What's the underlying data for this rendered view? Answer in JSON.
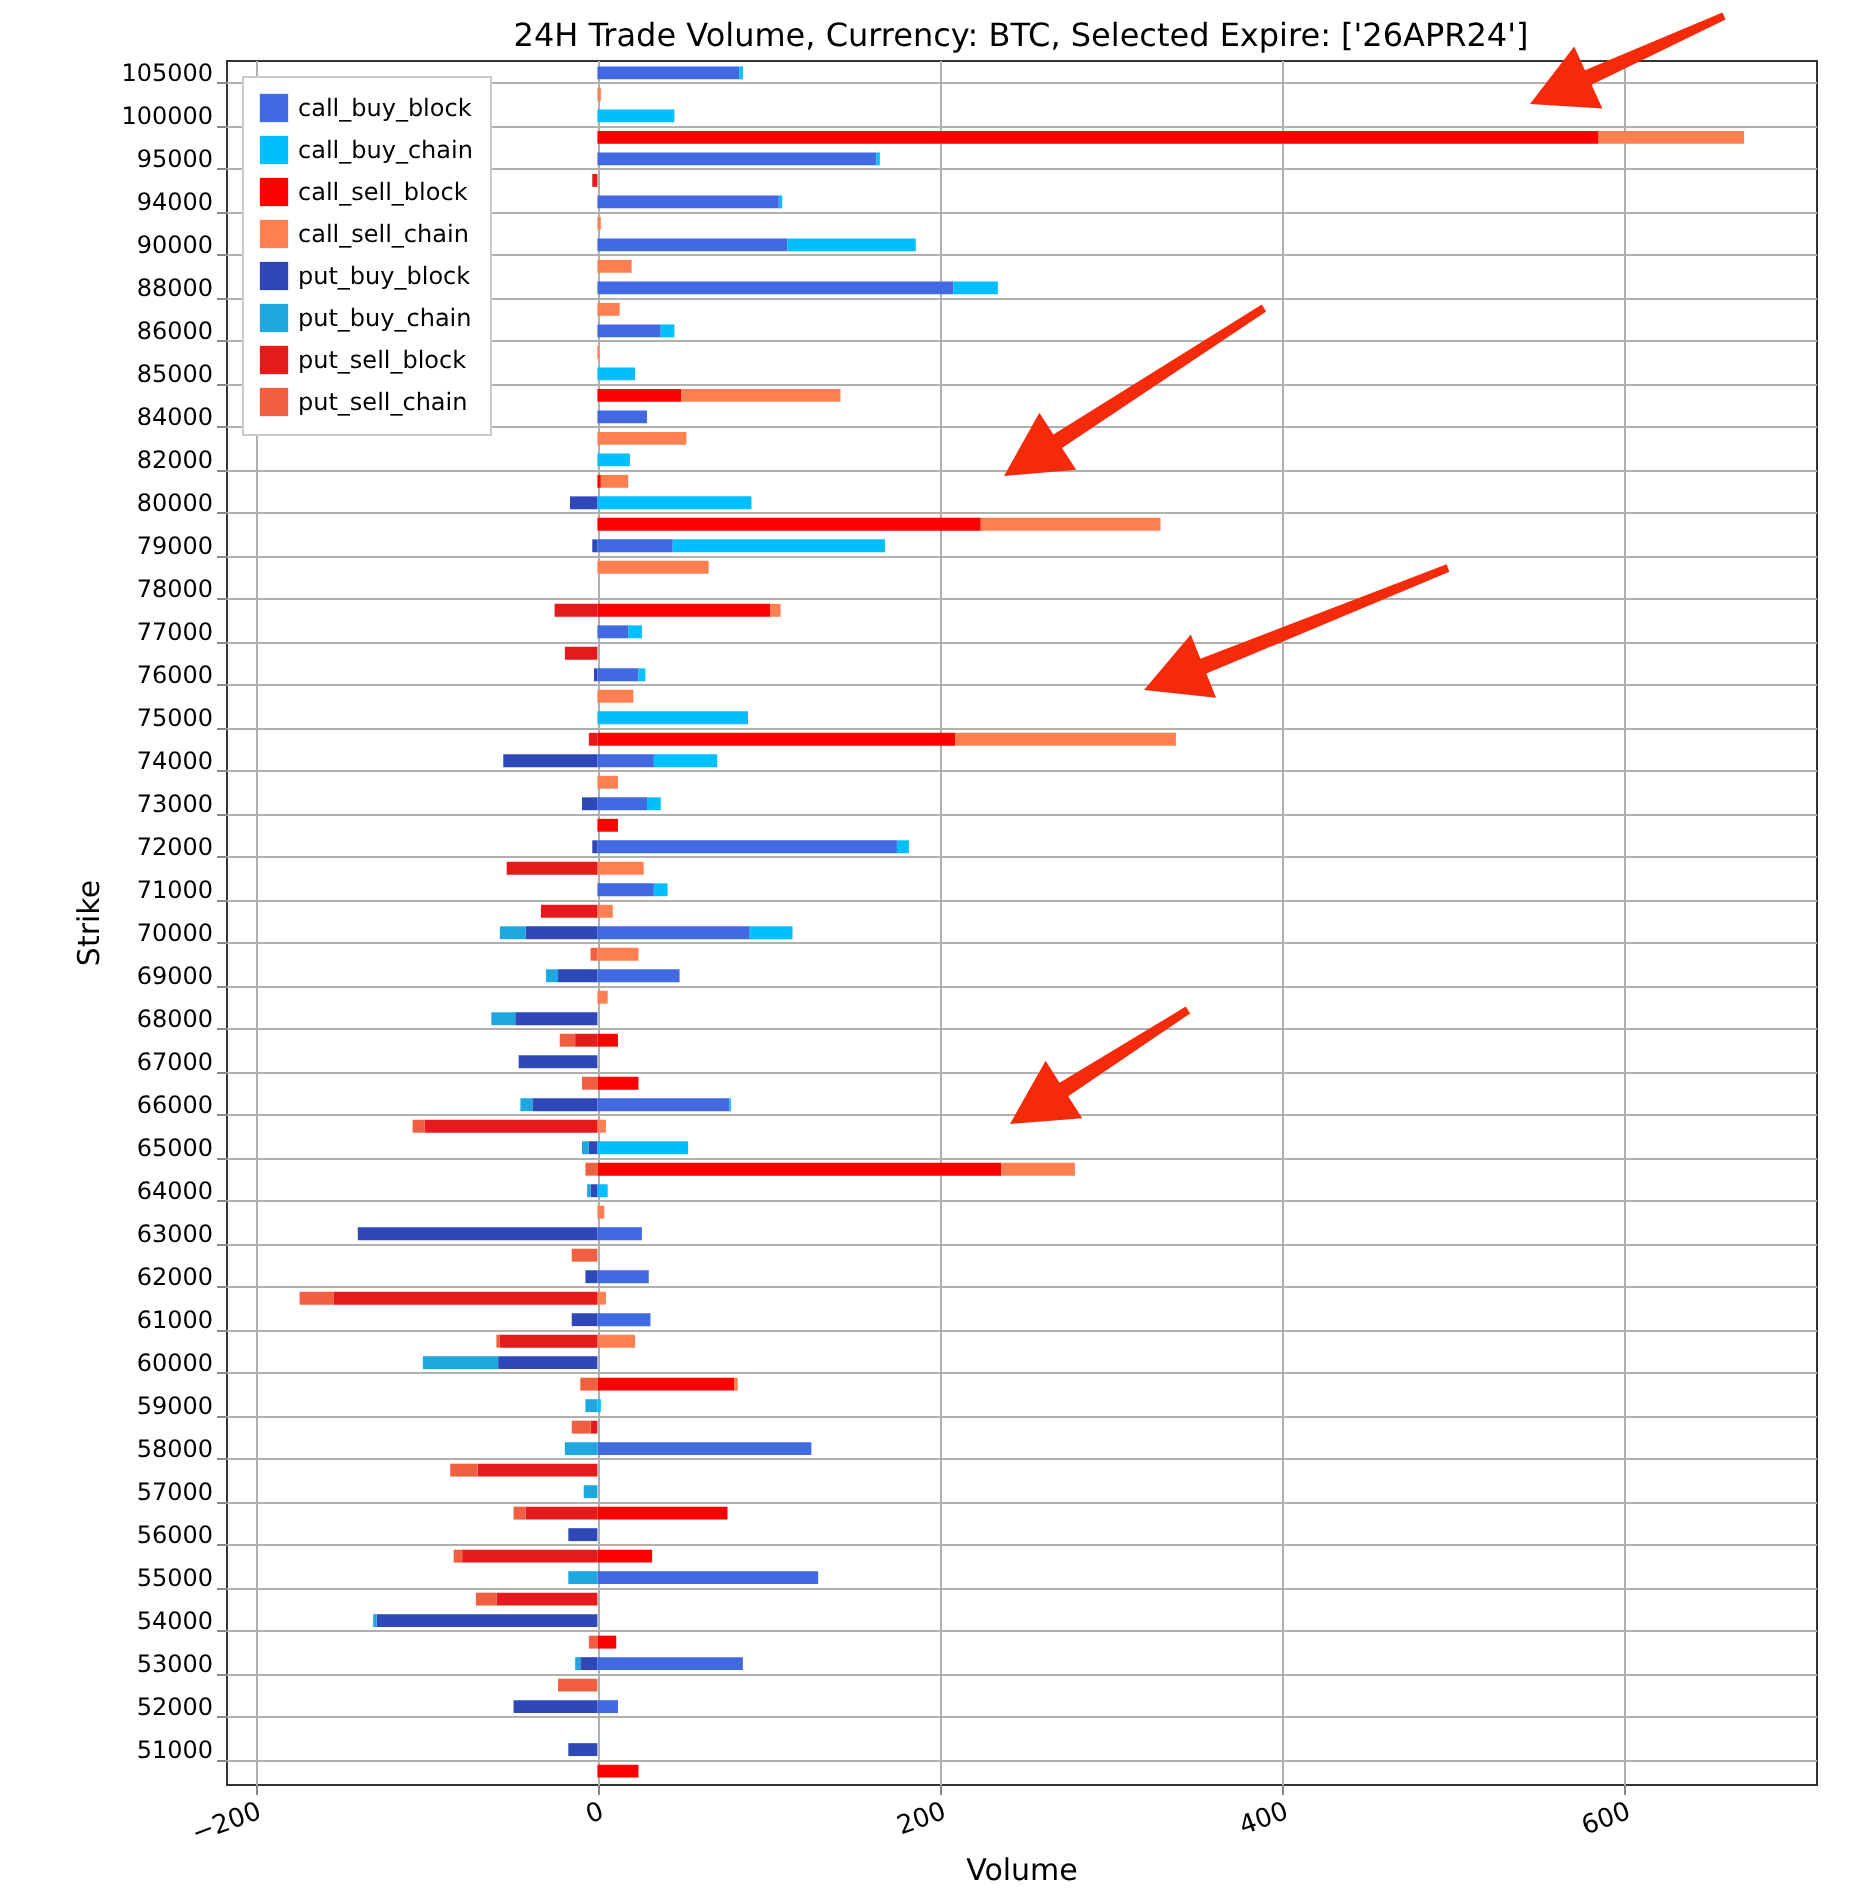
{
  "chart_data": {
    "type": "bar",
    "orientation": "horizontal",
    "stacked": true,
    "title": "24H Trade Volume, Currency: BTC, Selected Expire: ['26APR24']",
    "xlabel": "Volume",
    "ylabel": "Strike",
    "categories": [
      "105000",
      null,
      "100000",
      null,
      "95000",
      null,
      "94000",
      null,
      "90000",
      null,
      "88000",
      null,
      "86000",
      null,
      "85000",
      null,
      "84000",
      null,
      "82000",
      null,
      "80000",
      null,
      "79000",
      null,
      "78000",
      null,
      "77000",
      null,
      "76000",
      null,
      "75000",
      null,
      "74000",
      null,
      "73000",
      null,
      "72000",
      null,
      "71000",
      null,
      "70000",
      null,
      "69000",
      null,
      "68000",
      null,
      "67000",
      null,
      "66000",
      null,
      "65000",
      null,
      "64000",
      null,
      "63000",
      null,
      "62000",
      null,
      "61000",
      null,
      "60000",
      null,
      "59000",
      null,
      "58000",
      null,
      "57000",
      null,
      "56000",
      null,
      "55000",
      null,
      "54000",
      null,
      "53000",
      null,
      "52000",
      null,
      "51000",
      null
    ],
    "xlim": [
      -217,
      712
    ],
    "xticks": [
      -200,
      0,
      200,
      400,
      600
    ],
    "grid": true,
    "legend": "top left",
    "series": [
      {
        "name": "call_buy_block",
        "color": "#4169e1",
        "values": [
          83,
          null,
          null,
          null,
          163,
          null,
          106,
          null,
          111,
          null,
          208,
          null,
          37,
          null,
          null,
          null,
          29,
          null,
          null,
          null,
          null,
          null,
          44,
          null,
          null,
          null,
          18,
          null,
          24,
          null,
          null,
          null,
          33,
          null,
          29,
          null,
          175,
          null,
          33,
          null,
          89,
          null,
          48,
          null,
          null,
          null,
          null,
          null,
          77,
          null,
          null,
          null,
          null,
          null,
          26,
          null,
          30,
          null,
          31,
          null,
          null,
          null,
          null,
          null,
          125,
          null,
          null,
          null,
          null,
          null,
          129,
          null,
          null,
          null,
          85,
          null,
          12,
          null,
          null,
          null
        ]
      },
      {
        "name": "call_buy_chain",
        "color": "#00bfff",
        "values": [
          2,
          null,
          45,
          null,
          2,
          null,
          2,
          null,
          75,
          null,
          26,
          null,
          8,
          null,
          22,
          null,
          null,
          null,
          19,
          null,
          90,
          null,
          124,
          null,
          null,
          null,
          8,
          null,
          4,
          null,
          88,
          null,
          37,
          null,
          8,
          null,
          7,
          null,
          8,
          null,
          25,
          null,
          null,
          null,
          null,
          null,
          null,
          null,
          1,
          null,
          53,
          null,
          6,
          null,
          null,
          null,
          null,
          null,
          null,
          null,
          null,
          null,
          2,
          null,
          null,
          null,
          null,
          null,
          null,
          null,
          null,
          null,
          null,
          null,
          null,
          null,
          null,
          null,
          null,
          null
        ]
      },
      {
        "name": "call_sell_block",
        "color": "#ff0000",
        "values": [
          null,
          null,
          null,
          585,
          null,
          null,
          null,
          null,
          null,
          null,
          null,
          null,
          null,
          null,
          null,
          49,
          null,
          null,
          null,
          2,
          null,
          224,
          null,
          null,
          null,
          101,
          null,
          null,
          null,
          null,
          null,
          209,
          null,
          null,
          null,
          12,
          null,
          null,
          null,
          null,
          null,
          null,
          null,
          null,
          null,
          12,
          null,
          24,
          null,
          null,
          null,
          236,
          null,
          null,
          null,
          null,
          null,
          null,
          null,
          null,
          null,
          80,
          null,
          null,
          null,
          null,
          null,
          76,
          null,
          32,
          null,
          null,
          null,
          11,
          null,
          null,
          null,
          null,
          null,
          24
        ]
      },
      {
        "name": "call_sell_chain",
        "color": "#ff7f50",
        "values": [
          null,
          2,
          null,
          85,
          null,
          null,
          null,
          2,
          null,
          20,
          null,
          13,
          null,
          1,
          null,
          93,
          null,
          52,
          null,
          16,
          null,
          105,
          null,
          65,
          null,
          6,
          null,
          null,
          null,
          21,
          null,
          129,
          null,
          12,
          null,
          null,
          null,
          27,
          null,
          9,
          null,
          24,
          null,
          6,
          null,
          null,
          null,
          null,
          null,
          5,
          null,
          43,
          null,
          4,
          null,
          null,
          null,
          5,
          null,
          22,
          null,
          2,
          null,
          null,
          null,
          null,
          null,
          null,
          null,
          null,
          null,
          null,
          null,
          null,
          null,
          null,
          null,
          null,
          null,
          null
        ]
      },
      {
        "name": "put_buy_block",
        "color": "#2e48b8",
        "values": [
          null,
          null,
          null,
          null,
          null,
          null,
          null,
          null,
          null,
          null,
          null,
          null,
          null,
          null,
          null,
          null,
          null,
          null,
          null,
          null,
          -16,
          null,
          -3,
          null,
          null,
          null,
          null,
          null,
          -2,
          null,
          null,
          null,
          -55,
          null,
          -9,
          null,
          -3,
          null,
          null,
          null,
          -42,
          null,
          -23,
          null,
          -48,
          null,
          -46,
          null,
          -38,
          null,
          -5,
          null,
          -4,
          null,
          -140,
          null,
          -7,
          null,
          -15,
          null,
          -58,
          null,
          null,
          null,
          null,
          null,
          null,
          null,
          -17,
          null,
          null,
          null,
          -129,
          null,
          -10,
          null,
          -49,
          null,
          -17,
          null
        ]
      },
      {
        "name": "put_buy_chain",
        "color": "#1fa8e0",
        "values": [
          null,
          null,
          null,
          null,
          null,
          null,
          null,
          null,
          null,
          null,
          null,
          null,
          null,
          null,
          null,
          null,
          null,
          null,
          null,
          null,
          null,
          null,
          null,
          null,
          null,
          null,
          null,
          null,
          null,
          null,
          null,
          null,
          null,
          null,
          null,
          null,
          null,
          null,
          null,
          null,
          -15,
          null,
          -7,
          null,
          -14,
          null,
          null,
          null,
          -7,
          null,
          -4,
          null,
          -2,
          null,
          null,
          null,
          null,
          null,
          null,
          null,
          -44,
          null,
          -7,
          null,
          -19,
          null,
          -8,
          null,
          null,
          null,
          -17,
          null,
          -2,
          null,
          -3,
          null,
          null,
          null,
          null,
          null
        ]
      },
      {
        "name": "put_sell_block",
        "color": "#e41a1c",
        "values": [
          null,
          null,
          null,
          null,
          null,
          -3,
          null,
          null,
          null,
          null,
          null,
          null,
          null,
          null,
          null,
          null,
          null,
          null,
          null,
          null,
          null,
          null,
          null,
          null,
          null,
          -25,
          null,
          -19,
          null,
          null,
          null,
          -5,
          null,
          null,
          null,
          null,
          null,
          -53,
          null,
          -33,
          null,
          null,
          null,
          null,
          null,
          -13,
          null,
          null,
          null,
          -101,
          null,
          null,
          null,
          null,
          null,
          null,
          null,
          -154,
          null,
          -57,
          null,
          null,
          null,
          -4,
          null,
          -70,
          null,
          -42,
          null,
          -79,
          null,
          -59,
          null,
          null,
          null,
          null,
          null,
          null,
          null,
          null
        ]
      },
      {
        "name": "put_sell_chain",
        "color": "#f06040",
        "values": [
          null,
          null,
          null,
          null,
          null,
          null,
          null,
          null,
          null,
          null,
          null,
          null,
          null,
          null,
          null,
          null,
          null,
          null,
          null,
          null,
          null,
          null,
          null,
          null,
          null,
          null,
          null,
          null,
          null,
          null,
          null,
          null,
          null,
          null,
          null,
          null,
          null,
          null,
          null,
          null,
          null,
          -4,
          null,
          null,
          null,
          -9,
          null,
          -9,
          null,
          -7,
          null,
          -7,
          null,
          null,
          null,
          -15,
          null,
          -20,
          null,
          -2,
          null,
          -10,
          null,
          -11,
          null,
          -16,
          null,
          -7,
          null,
          -5,
          null,
          -12,
          null,
          -5,
          null,
          -23,
          null,
          null,
          null,
          null
        ]
      }
    ]
  }
}
